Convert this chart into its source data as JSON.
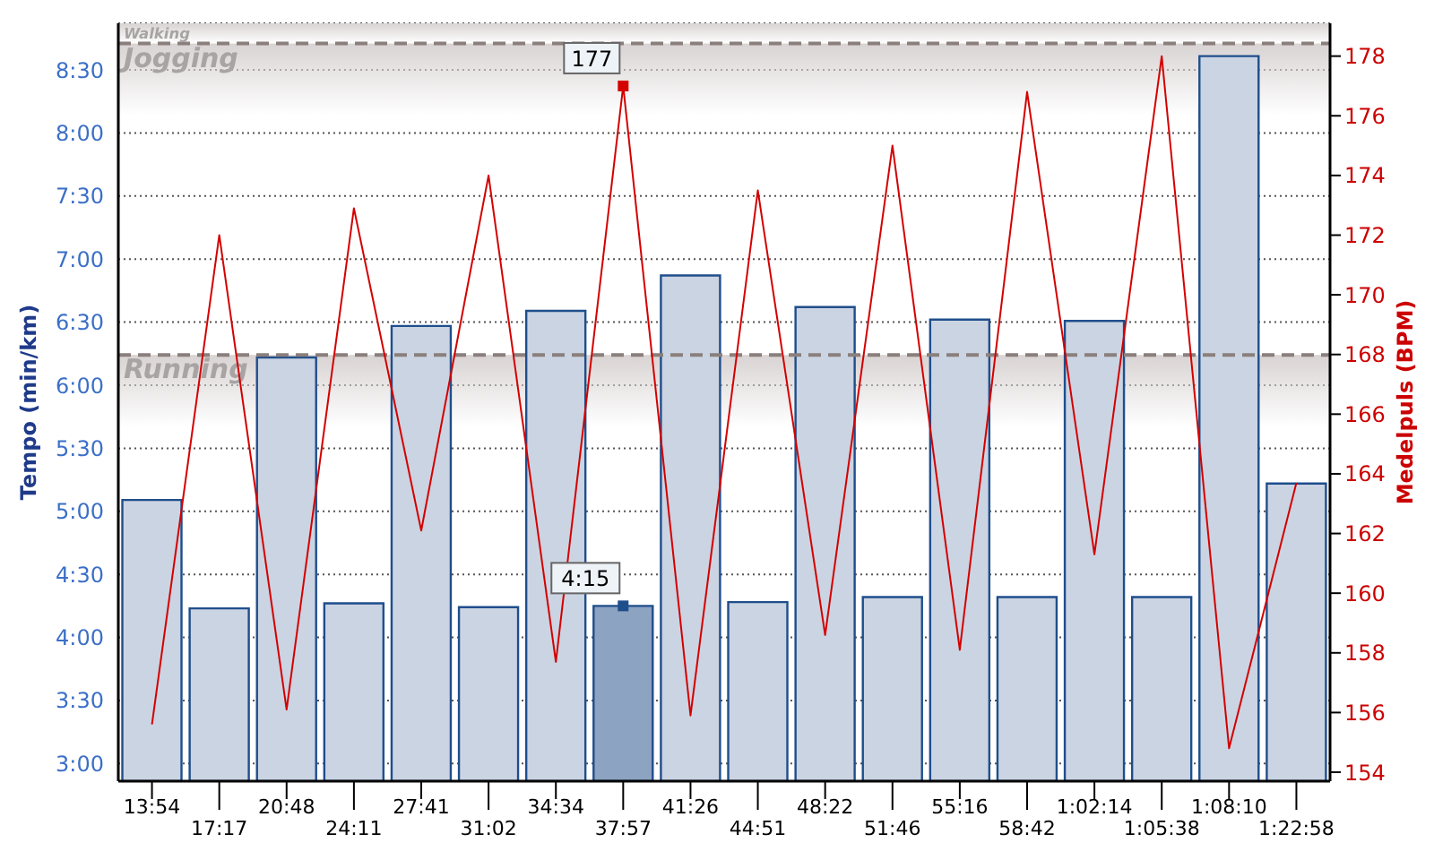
{
  "chart_data": {
    "type": "bar",
    "ylabel": "Tempo (min/km)",
    "y2label": "Medelpuls (BPM)",
    "categories": [
      "13:54",
      "17:17",
      "20:48",
      "24:11",
      "27:41",
      "31:02",
      "34:34",
      "37:57",
      "41:26",
      "44:51",
      "48:22",
      "51:46",
      "55:16",
      "58:42",
      "1:02:14",
      "1:05:38",
      "1:08:10",
      "1:22:58"
    ],
    "series": [
      {
        "color": "#cbd4e2",
        "colors": [
          "#cbd4e2",
          "#cbd4e2",
          "#cbd4e2",
          "#cbd4e2",
          "#cbd4e2",
          "#cbd4e2",
          "#cbd4e2",
          "#8ca3c1",
          "#cbd4e2",
          "#cbd4e2",
          "#cbd4e2",
          "#cbd4e2",
          "#cbd4e2",
          "#cbd4e2",
          "#cbd4e2",
          "#cbd4e2",
          "#cbd4e2",
          "#cbd4e2"
        ],
        "values": [
          5.09,
          4.23,
          6.22,
          4.27,
          6.47,
          4.24,
          6.59,
          4.25,
          6.87,
          4.28,
          6.62,
          4.32,
          6.52,
          4.32,
          6.51,
          4.32,
          8.61,
          5.22
        ],
        "value_labels": [
          null,
          null,
          null,
          null,
          null,
          null,
          null,
          "4:15",
          null,
          null,
          null,
          null,
          null,
          null,
          null,
          null,
          null,
          null
        ]
      },
      {
        "type": "line",
        "axis": "y2",
        "color": "#d40000",
        "values": [
          155.6,
          172.0,
          156.1,
          172.9,
          162.1,
          174.0,
          157.7,
          177,
          155.9,
          173.5,
          158.6,
          175.0,
          158.1,
          176.8,
          161.3,
          178.0,
          154.8,
          163.7
        ],
        "value_labels": [
          null,
          null,
          null,
          null,
          null,
          null,
          null,
          "177",
          null,
          null,
          null,
          null,
          null,
          null,
          null,
          null,
          null,
          null
        ]
      }
    ],
    "ylim": [
      2.86,
      8.87
    ],
    "yticks": [
      {
        "value": 3,
        "label": "3:00"
      },
      {
        "value": 3.5,
        "label": "3:30"
      },
      {
        "value": 4,
        "label": "4:00"
      },
      {
        "value": 4.5,
        "label": "4:30"
      },
      {
        "value": 5,
        "label": "5:00"
      },
      {
        "value": 5.5,
        "label": "5:30"
      },
      {
        "value": 6,
        "label": "6:00"
      },
      {
        "value": 6.5,
        "label": "6:30"
      },
      {
        "value": 7,
        "label": "7:00"
      },
      {
        "value": 7.5,
        "label": "7:30"
      },
      {
        "value": 8,
        "label": "8:00"
      },
      {
        "value": 8.5,
        "label": "8:30"
      }
    ],
    "y2lim": [
      153.7,
      179.1
    ],
    "y2ticks": [
      154,
      156,
      158,
      160,
      162,
      164,
      166,
      168,
      170,
      172,
      174,
      176,
      178
    ],
    "bands": [
      {
        "axis": "y",
        "from": 2.86,
        "to": 6.24,
        "label": "Running",
        "color": "#d9d3d3"
      },
      {
        "axis": "y",
        "from": 6.24,
        "to": 8.71,
        "label": "Jogging",
        "color": "#d9d3d3"
      },
      {
        "axis": "y",
        "from": 8.71,
        "to": 8.87,
        "label": "Walking",
        "color": "#d9d3d3"
      }
    ],
    "ref_lines": [
      {
        "axis": "y",
        "value": 6.24,
        "color": "#8a7f7c",
        "line_style": "dashed"
      },
      {
        "axis": "y",
        "value": 8.71,
        "color": "#8a7f7c",
        "line_style": "dashed"
      }
    ],
    "grid": "y",
    "legend": false,
    "marker": "none",
    "line_style": "solid"
  }
}
